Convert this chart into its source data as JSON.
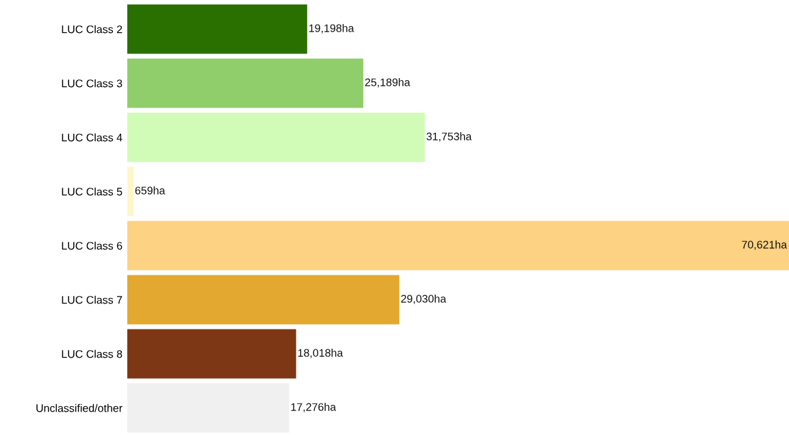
{
  "chart_data": {
    "type": "bar",
    "orientation": "horizontal",
    "categories": [
      "LUC Class 2",
      "LUC Class 3",
      "LUC Class 4",
      "LUC Class 5",
      "LUC Class 6",
      "LUC Class 7",
      "LUC Class 8",
      "Unclassified/other"
    ],
    "values": [
      19198,
      25189,
      31753,
      659,
      70621,
      29030,
      18018,
      17276
    ],
    "value_labels": [
      "19,198ha",
      "25,189ha",
      "31,753ha",
      "659ha",
      "70,621ha",
      "29,030ha",
      "18,018ha",
      "17,276ha"
    ],
    "colors": [
      "#2a7000",
      "#8fce6a",
      "#d0fcb8",
      "#fdf7c8",
      "#fdd283",
      "#e2a830",
      "#7d3714",
      "#f0f0f0"
    ],
    "grid": false,
    "legend": false
  }
}
